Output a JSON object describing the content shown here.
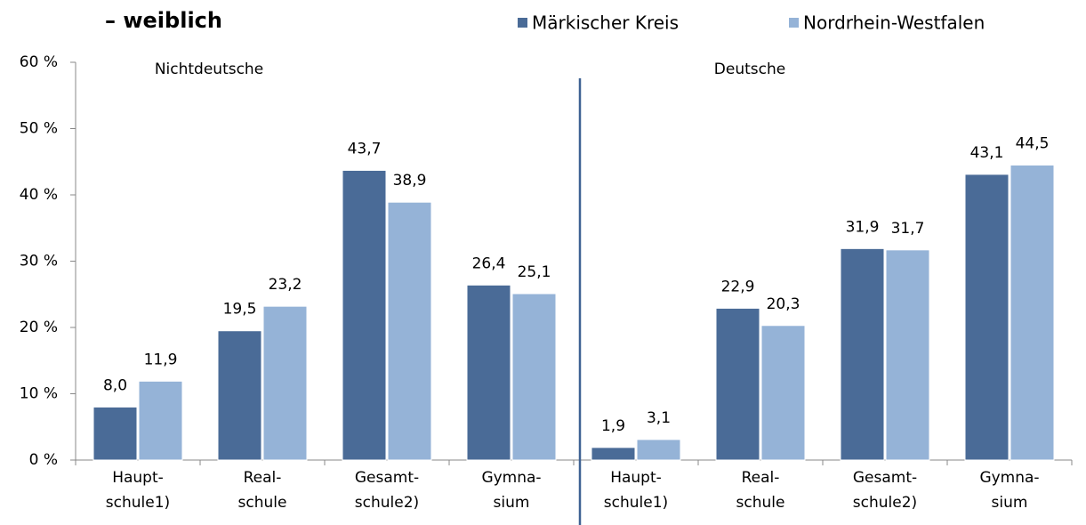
{
  "chart_data": {
    "type": "bar",
    "title": "– weiblich",
    "annotations": [
      "Nichtdeutsche",
      "Deutsche"
    ],
    "categories": [
      [
        "Haupt-",
        "schule1)"
      ],
      [
        "Real-",
        "schule"
      ],
      [
        "Gesamt-",
        "schule2)"
      ],
      [
        "Gymna-",
        "sium"
      ],
      [
        "Haupt-",
        "schule1)"
      ],
      [
        "Real-",
        "schule"
      ],
      [
        "Gesamt-",
        "schule2)"
      ],
      [
        "Gymna-",
        "sium"
      ]
    ],
    "series": [
      {
        "name": "Märkischer Kreis",
        "color": "#4a6b97",
        "values": [
          8.0,
          19.5,
          43.7,
          26.4,
          1.9,
          22.9,
          31.9,
          43.1
        ],
        "value_labels": [
          "8,0",
          "19,5",
          "43,7",
          "26,4",
          "1,9",
          "22,9",
          "31,9",
          "43,1"
        ]
      },
      {
        "name": "Nordrhein-Westfalen",
        "color": "#95b3d7",
        "values": [
          11.9,
          23.2,
          38.9,
          25.1,
          3.1,
          20.3,
          31.7,
          44.5
        ],
        "value_labels": [
          "11,9",
          "23,2",
          "38,9",
          "25,1",
          "3,1",
          "20,3",
          "31,7",
          "44,5"
        ]
      }
    ],
    "ylim": [
      0,
      60
    ],
    "yticks": [
      {
        "value": 0,
        "label": "0 %"
      },
      {
        "value": 10,
        "label": "10 %"
      },
      {
        "value": 20,
        "label": "20 %"
      },
      {
        "value": 30,
        "label": "30 %"
      },
      {
        "value": 40,
        "label": "40 %"
      },
      {
        "value": 50,
        "label": "50 %"
      },
      {
        "value": 60,
        "label": "60 %"
      }
    ],
    "legend": "top-right"
  }
}
